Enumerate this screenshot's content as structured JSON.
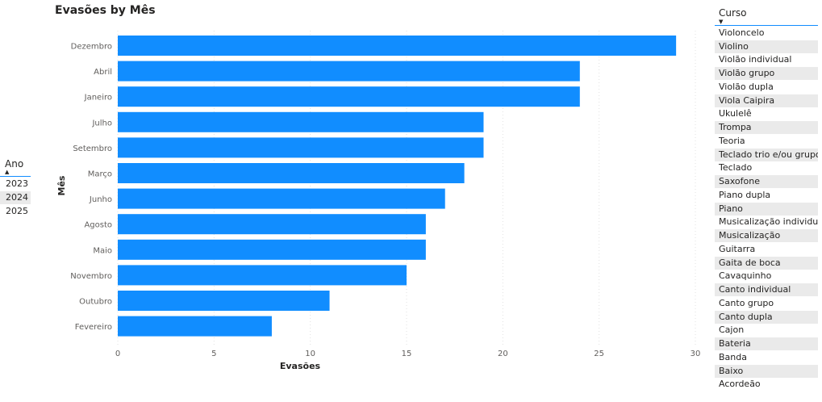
{
  "ano_slicer": {
    "title": "Ano",
    "sort_icon": "sort-ascending-icon",
    "items": [
      "2023",
      "2024",
      "2025"
    ]
  },
  "curso_slicer": {
    "title": "Curso",
    "sort_icon": "sort-descending-icon",
    "items": [
      "Violoncelo",
      "Violino",
      "Violão individual",
      "Violão grupo",
      "Violão dupla",
      "Viola Caipira",
      "Ukulelê",
      "Trompa",
      "Teoria",
      "Teclado trio e/ou grupo",
      "Teclado",
      "Saxofone",
      "Piano dupla",
      "Piano",
      "Musicalização individual",
      "Musicalização",
      "Guitarra",
      "Gaita de boca",
      "Cavaquinho",
      "Canto individual",
      "Canto grupo",
      "Canto dupla",
      "Cajon",
      "Bateria",
      "Banda",
      "Baixo",
      "Acordeão"
    ]
  },
  "colors": {
    "bar": "#118dff",
    "accent": "#118dff",
    "alt_row": "#eaeaea",
    "grid": "#e1e1e1",
    "text": "#252423",
    "tick": "#605e5c"
  },
  "chart_data": {
    "type": "bar",
    "orientation": "horizontal",
    "title": "Evasões by Mês",
    "xlabel": "Evasões",
    "ylabel": "Mês",
    "categories": [
      "Dezembro",
      "Abril",
      "Janeiro",
      "Julho",
      "Setembro",
      "Março",
      "Junho",
      "Agosto",
      "Maio",
      "Novembro",
      "Outubro",
      "Fevereiro"
    ],
    "values": [
      29,
      24,
      24,
      19,
      19,
      18,
      17,
      16,
      16,
      15,
      11,
      8
    ],
    "xlim": [
      0,
      30
    ],
    "xticks": [
      0,
      5,
      10,
      15,
      20,
      25,
      30
    ],
    "grid": true
  }
}
